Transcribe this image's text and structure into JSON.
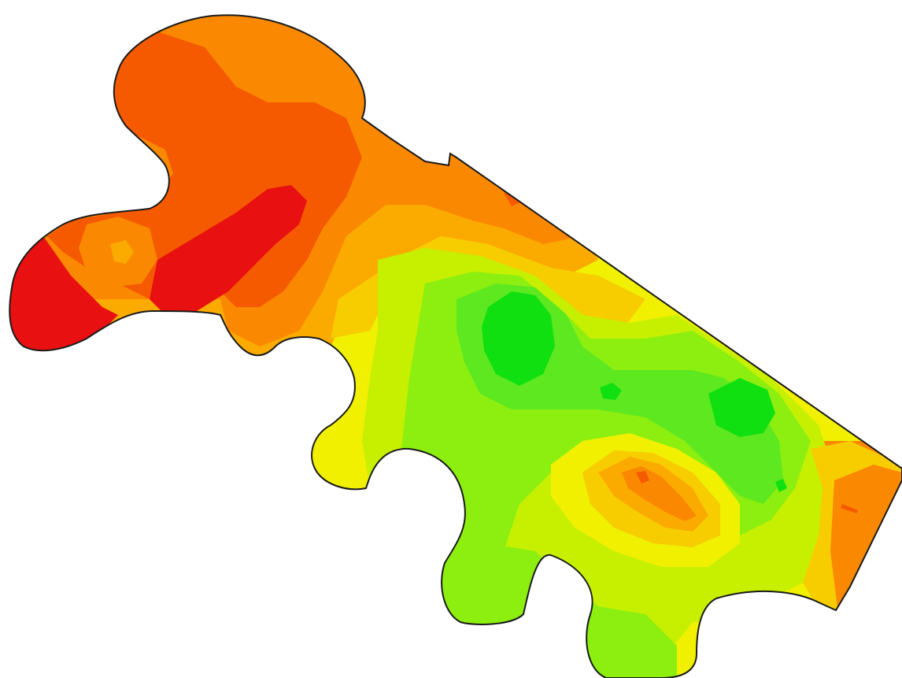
{
  "map": {
    "type": "interpolated field contour map",
    "background": "#ffffff",
    "boundary_color": "#1a1a1a",
    "palette": {
      "red": "#e81010",
      "red_orange": "#f55a00",
      "orange": "#fa8800",
      "light_orange": "#fbaa00",
      "amber": "#f7cd00",
      "yellow": "#f0f000",
      "yellow_green": "#c6f000",
      "light_green": "#8cef10",
      "green": "#5ee820",
      "bright_green": "#10e010"
    }
  }
}
